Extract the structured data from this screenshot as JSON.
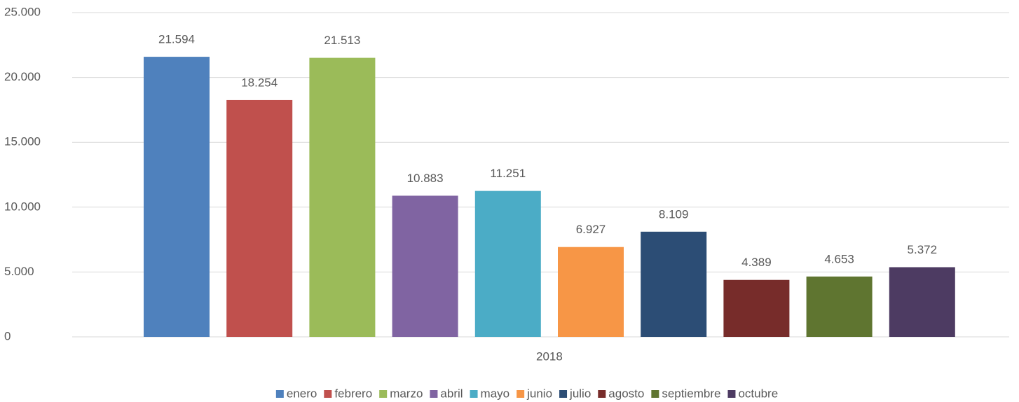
{
  "chart_data": {
    "type": "bar",
    "categories": [
      "2018"
    ],
    "series": [
      {
        "name": "enero",
        "color": "#4f81bd",
        "values": [
          21594
        ],
        "value_labels": [
          "21.594"
        ]
      },
      {
        "name": "febrero",
        "color": "#c0504d",
        "values": [
          18254
        ],
        "value_labels": [
          "18.254"
        ]
      },
      {
        "name": "marzo",
        "color": "#9bbb59",
        "values": [
          21513
        ],
        "value_labels": [
          "21.513"
        ]
      },
      {
        "name": "abril",
        "color": "#8064a2",
        "values": [
          10883
        ],
        "value_labels": [
          "10.883"
        ]
      },
      {
        "name": "mayo",
        "color": "#4bacc6",
        "values": [
          11251
        ],
        "value_labels": [
          "11.251"
        ]
      },
      {
        "name": "junio",
        "color": "#f79646",
        "values": [
          6927
        ],
        "value_labels": [
          "6.927"
        ]
      },
      {
        "name": "julio",
        "color": "#2c4d75",
        "values": [
          8109
        ],
        "value_labels": [
          "8.109"
        ]
      },
      {
        "name": "agosto",
        "color": "#772c2a",
        "values": [
          4389
        ],
        "value_labels": [
          "4.389"
        ]
      },
      {
        "name": "septiembre",
        "color": "#5f7530",
        "values": [
          4653
        ],
        "value_labels": [
          "4.653"
        ]
      },
      {
        "name": "octubre",
        "color": "#4d3b62",
        "values": [
          5372
        ],
        "value_labels": [
          "5.372"
        ]
      }
    ],
    "ylim": [
      0,
      25000
    ],
    "yticks": [
      0,
      {
        "value": 5000,
        "label": "5.000"
      },
      {
        "value": 10000,
        "label": "10.000"
      },
      {
        "value": 15000,
        "label": "15.000"
      },
      {
        "value": 20000,
        "label": "20.000"
      },
      {
        "value": 25000,
        "label": "25.000"
      }
    ],
    "grid": true,
    "legend": "bottom"
  }
}
